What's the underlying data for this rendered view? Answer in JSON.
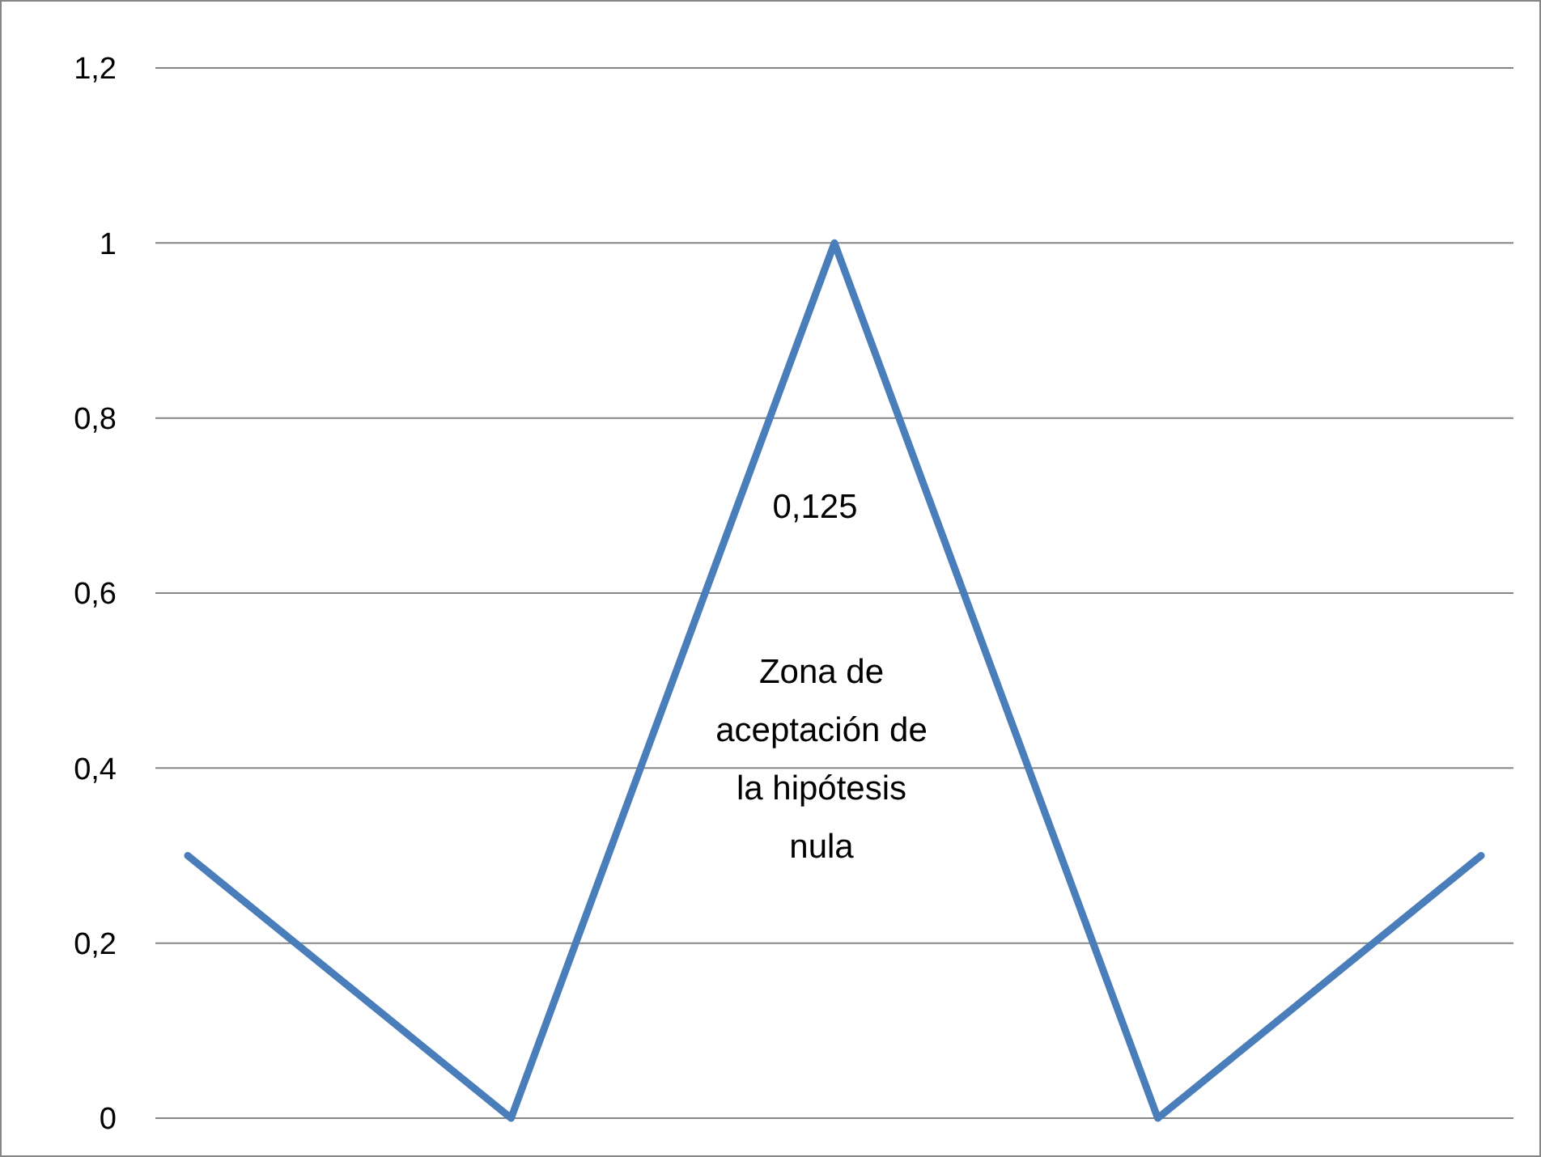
{
  "chart_data": {
    "type": "line",
    "categories": [
      null,
      null,
      null,
      null,
      null
    ],
    "series": [
      {
        "color": "#4a7ebb",
        "values": [
          0.3,
          0,
          1,
          0,
          0.3
        ]
      }
    ],
    "ylim": [
      0,
      1.2
    ],
    "yticks": [
      0,
      {
        "value": 0.2,
        "label": "0,2"
      },
      {
        "value": 0.4,
        "label": "0,4"
      },
      {
        "value": 0.6,
        "label": "0,6"
      },
      {
        "value": 0.8,
        "label": "0,8"
      },
      1,
      {
        "value": 1.2,
        "label": "1,2"
      }
    ],
    "grid": "y",
    "marker": "none",
    "line_style": "solid",
    "annotations": [
      "0,125",
      "Zona de aceptación de la hipótesis nula"
    ]
  }
}
